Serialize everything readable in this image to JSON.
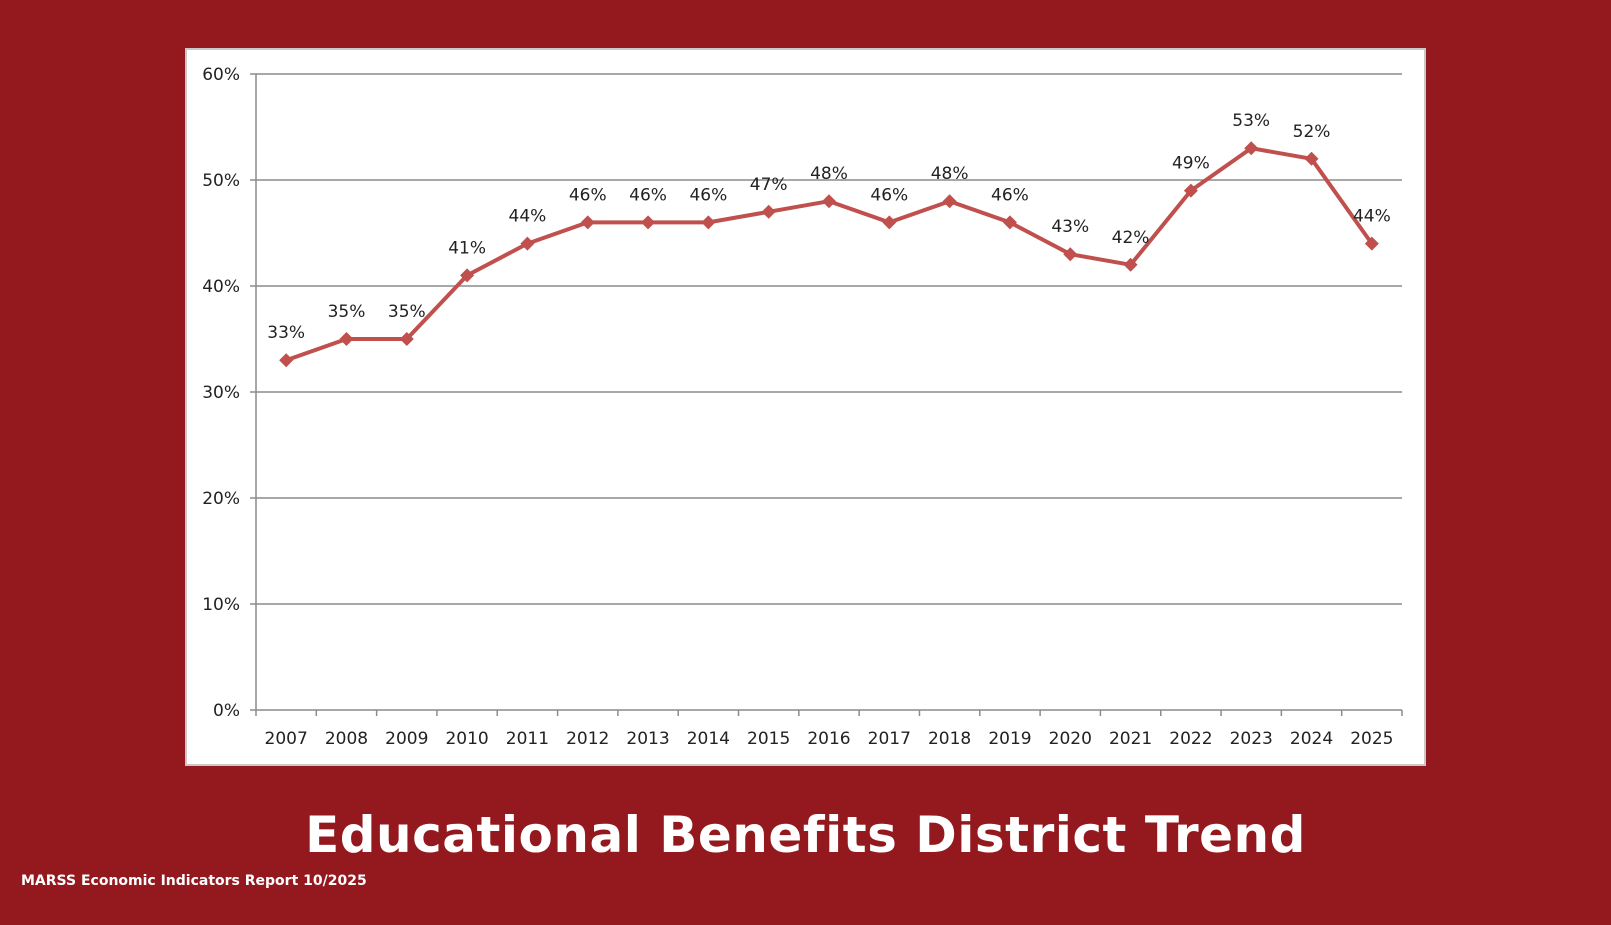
{
  "slide": {
    "title": "Educational Benefits District Trend",
    "source": "MARSS Economic Indicators Report 10/2025",
    "background_color": "#93191f"
  },
  "chart_data": {
    "type": "line",
    "title": "",
    "xlabel": "",
    "ylabel": "",
    "ylim": [
      0,
      60
    ],
    "yticks": [
      0,
      10,
      20,
      30,
      40,
      50,
      60
    ],
    "ytick_labels": [
      "0%",
      "10%",
      "20%",
      "30%",
      "40%",
      "50%",
      "60%"
    ],
    "grid": true,
    "legend": "none",
    "categories": [
      "2007",
      "2008",
      "2009",
      "2010",
      "2011",
      "2012",
      "2013",
      "2014",
      "2015",
      "2016",
      "2017",
      "2018",
      "2019",
      "2020",
      "2021",
      "2022",
      "2023",
      "2024",
      "2025"
    ],
    "series": [
      {
        "name": "Educational Benefits",
        "color": "#c0504d",
        "values": [
          33,
          35,
          35,
          41,
          44,
          46,
          46,
          46,
          47,
          48,
          46,
          48,
          46,
          43,
          42,
          49,
          53,
          52,
          44
        ],
        "labels": [
          "33%",
          "35%",
          "35%",
          "41%",
          "44%",
          "46%",
          "46%",
          "46%",
          "47%",
          "48%",
          "46%",
          "48%",
          "46%",
          "43%",
          "42%",
          "49%",
          "53%",
          "52%",
          "44%"
        ]
      }
    ]
  }
}
